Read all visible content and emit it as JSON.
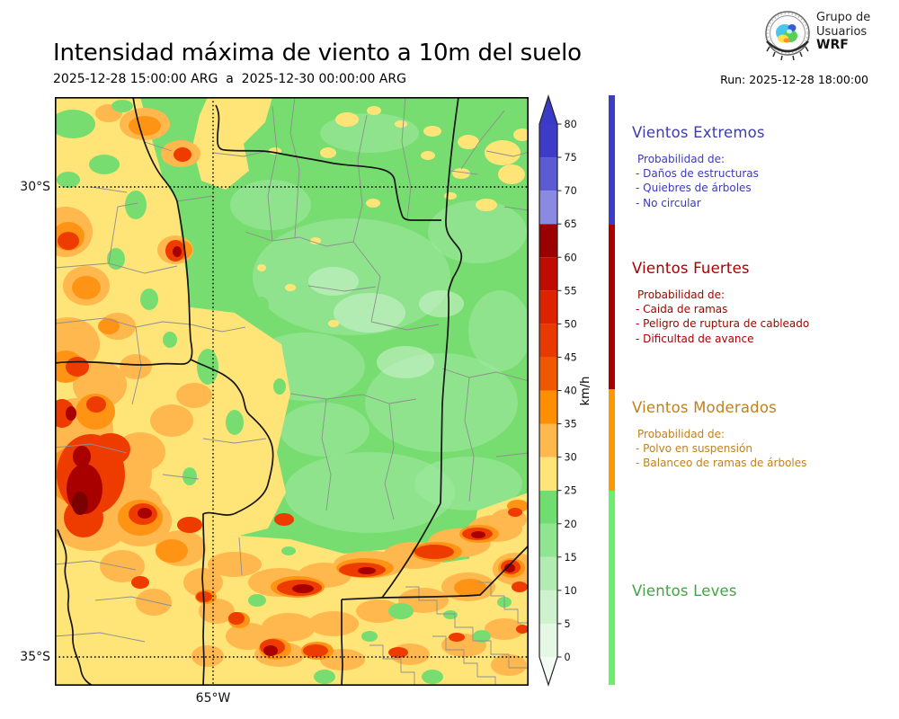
{
  "header": {
    "title": "Intensidad máxima de viento a 10m del suelo",
    "valid_period": "2025-12-28 15:00:00 ARG  a  2025-12-30 00:00:00 ARG",
    "run_label": "Run: 2025-12-28 18:00:00",
    "logo": {
      "line1": "Grupo de",
      "line2": "Usuarios",
      "line3": "WRF"
    }
  },
  "map": {
    "y_ticks": [
      "30°S",
      "35°S"
    ],
    "x_ticks": [
      "65°W"
    ]
  },
  "chart_data": {
    "type": "heatmap",
    "title": "Intensidad máxima de viento a 10m del suelo",
    "valid_from": "2025-12-28 15:00:00 ARG",
    "valid_to": "2025-12-30 00:00:00 ARG",
    "model_run": "2025-12-28 18:00:00",
    "units": "km/h",
    "lat_ticks": [
      "30°S",
      "35°S"
    ],
    "lon_ticks": [
      "65°W"
    ],
    "wind_range_plotted_kmh": [
      0,
      80
    ],
    "colorbar": {
      "label": "km/h",
      "ticks": [
        0,
        5,
        10,
        15,
        20,
        25,
        30,
        35,
        40,
        45,
        50,
        55,
        60,
        65,
        70,
        75,
        80
      ],
      "segments": [
        {
          "from": 0,
          "to": 5,
          "color": "#e4f8e4"
        },
        {
          "from": 5,
          "to": 10,
          "color": "#cdf2cd"
        },
        {
          "from": 10,
          "to": 15,
          "color": "#b2ecb2"
        },
        {
          "from": 15,
          "to": 20,
          "color": "#90e690"
        },
        {
          "from": 20,
          "to": 25,
          "color": "#70dd70"
        },
        {
          "from": 25,
          "to": 30,
          "color": "#ffe478"
        },
        {
          "from": 30,
          "to": 35,
          "color": "#ffb84d"
        },
        {
          "from": 35,
          "to": 40,
          "color": "#ff8f00"
        },
        {
          "from": 40,
          "to": 45,
          "color": "#f05800"
        },
        {
          "from": 45,
          "to": 50,
          "color": "#e83a00"
        },
        {
          "from": 50,
          "to": 55,
          "color": "#dd2200"
        },
        {
          "from": 55,
          "to": 60,
          "color": "#c00c00"
        },
        {
          "from": 60,
          "to": 65,
          "color": "#9b0000"
        },
        {
          "from": 65,
          "to": 70,
          "color": "#8a8ae2"
        },
        {
          "from": 70,
          "to": 75,
          "color": "#5b5bd3"
        },
        {
          "from": 75,
          "to": 80,
          "color": "#3c3cc8"
        }
      ],
      "over_arrow_color": "#3a3ac8",
      "under_arrow_color": "#f2fcf2"
    },
    "categories": [
      {
        "name": "Vientos Extremos",
        "range_kmh": [
          65,
          80
        ],
        "text_color": "#3b3bb4",
        "bar_color": "#3c3ccb",
        "prob_title": "Probabilidad de:",
        "items": [
          "- Daños de estructuras",
          "- Quiebres de árboles",
          "- No circular"
        ]
      },
      {
        "name": "Vientos Fuertes",
        "range_kmh": [
          40,
          65
        ],
        "text_color": "#a80000",
        "bar_color": "#aa0000",
        "prob_title": "Probabilidad de:",
        "items": [
          "- Caida de ramas",
          "- Peligro de ruptura de cableado",
          "- Dificultad de avance"
        ]
      },
      {
        "name": "Vientos Moderados",
        "range_kmh": [
          25,
          40
        ],
        "text_color": "#c0811c",
        "bar_color": "#ff9800",
        "prob_title": "Probabilidad de:",
        "items": [
          "- Polvo en suspensión",
          "- Balanceo de ramas de árboles"
        ]
      },
      {
        "name": "Vientos Leves",
        "range_kmh": [
          0,
          25
        ],
        "text_color": "#44a344",
        "bar_color": "#6cee6c",
        "prob_title": "",
        "items": []
      }
    ]
  }
}
